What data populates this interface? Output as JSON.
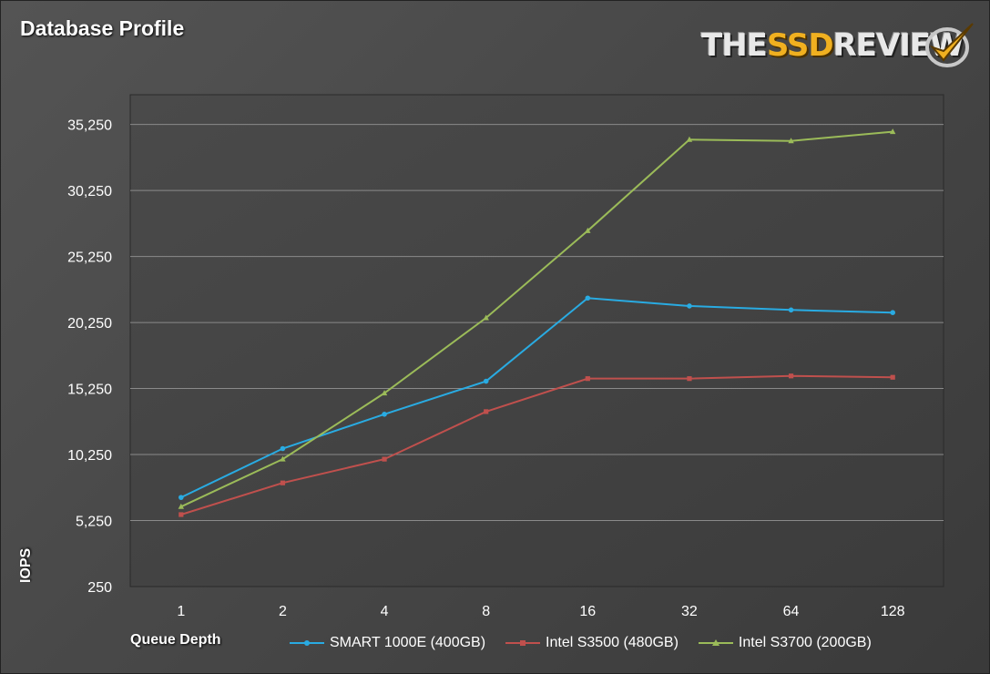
{
  "title": "Database Profile",
  "logo": {
    "text_pre": "THE",
    "text_accent": "SSD",
    "text_post": "REVIEW"
  },
  "chart_data": {
    "type": "line",
    "title": "Database Profile",
    "xlabel": "Queue Depth",
    "ylabel": "IOPS",
    "categories": [
      "1",
      "2",
      "4",
      "8",
      "16",
      "32",
      "64",
      "128"
    ],
    "yticks": [
      "250",
      "5,250",
      "10,250",
      "15,250",
      "20,250",
      "25,250",
      "30,250",
      "35,250"
    ],
    "ytick_values": [
      250,
      5250,
      10250,
      15250,
      20250,
      25250,
      30250,
      35250
    ],
    "ylim": [
      250,
      37500
    ],
    "grid": true,
    "legend_position": "bottom",
    "series": [
      {
        "name": "SMART 1000E (400GB)",
        "color": "#29abe2",
        "marker": "circle",
        "values": [
          7000,
          10700,
          13300,
          15800,
          22100,
          21500,
          21200,
          21000
        ]
      },
      {
        "name": "Intel S3500 (480GB)",
        "color": "#c0504d",
        "marker": "square",
        "values": [
          5700,
          8100,
          9900,
          13500,
          16000,
          16000,
          16200,
          16100
        ]
      },
      {
        "name": "Intel S3700 (200GB)",
        "color": "#9bbb59",
        "marker": "triangle",
        "values": [
          6300,
          9900,
          14900,
          20600,
          27200,
          34100,
          34000,
          34700
        ]
      }
    ]
  }
}
